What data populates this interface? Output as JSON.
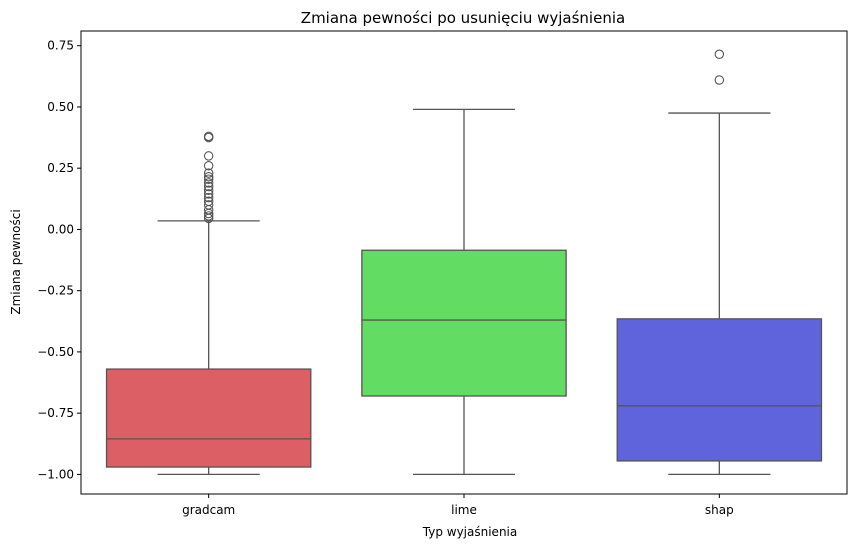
{
  "chart_data": {
    "type": "box",
    "title": "Zmiana pewności po usunięciu wyjaśnienia",
    "xlabel": "Typ wyjaśnienia",
    "ylabel": "Zmiana pewności",
    "ylim": [
      -1.08,
      0.81
    ],
    "yticks": [
      "0.75",
      "0.50",
      "0.25",
      "0.00",
      "−0.25",
      "−0.50",
      "−0.75",
      "−1.00"
    ],
    "ytick_values": [
      0.75,
      0.5,
      0.25,
      0.0,
      -0.25,
      -0.5,
      -0.75,
      -1.0
    ],
    "grid": false,
    "categories": [
      "gradcam",
      "lime",
      "shap"
    ],
    "boxes": [
      {
        "category": "gradcam",
        "color": "#db5f65",
        "whisker_low": -1.0,
        "q1": -0.97,
        "median": -0.855,
        "q3": -0.57,
        "whisker_high": 0.035,
        "outliers": [
          0.045,
          0.055,
          0.065,
          0.08,
          0.1,
          0.115,
          0.13,
          0.145,
          0.16,
          0.175,
          0.19,
          0.205,
          0.215,
          0.23,
          0.26,
          0.3,
          0.375,
          0.38
        ]
      },
      {
        "category": "lime",
        "color": "#62dc62",
        "whisker_low": -1.0,
        "q1": -0.68,
        "median": -0.37,
        "q3": -0.085,
        "whisker_high": 0.49,
        "outliers": []
      },
      {
        "category": "shap",
        "color": "#5f63dc",
        "whisker_low": -1.0,
        "q1": -0.945,
        "median": -0.72,
        "q3": -0.365,
        "whisker_high": 0.475,
        "outliers": [
          0.61,
          0.715
        ]
      }
    ]
  }
}
